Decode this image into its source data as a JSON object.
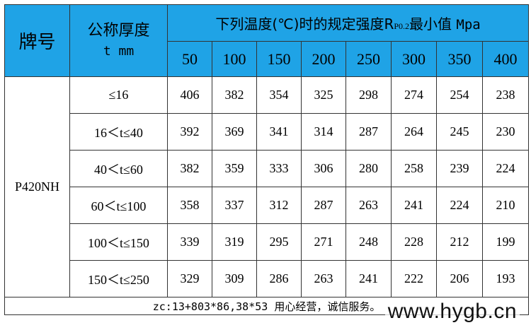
{
  "header": {
    "grade_label": "牌号",
    "thickness_label": "公称厚度",
    "thickness_unit": "t  mm",
    "temp_title_prefix": "下列温度(℃)时的规定强度R",
    "temp_title_sub": "P0.2",
    "temp_title_suffix": "最小值",
    "temp_unit": "Mpa",
    "temperatures": [
      "50",
      "100",
      "150",
      "200",
      "250",
      "300",
      "350",
      "400"
    ]
  },
  "grade": "P420NH",
  "rows": [
    {
      "range": "≤16",
      "values": [
        "406",
        "382",
        "354",
        "325",
        "298",
        "274",
        "254",
        "238"
      ]
    },
    {
      "range": "16＜t≤40",
      "values": [
        "392",
        "369",
        "341",
        "314",
        "287",
        "264",
        "245",
        "230"
      ]
    },
    {
      "range": "40＜t≤60",
      "values": [
        "382",
        "359",
        "333",
        "306",
        "280",
        "258",
        "239",
        "224"
      ]
    },
    {
      "range": "60＜t≤100",
      "values": [
        "358",
        "337",
        "312",
        "287",
        "263",
        "241",
        "224",
        "210"
      ]
    },
    {
      "range": "100＜t≤150",
      "values": [
        "339",
        "319",
        "295",
        "271",
        "248",
        "228",
        "212",
        "199"
      ]
    },
    {
      "range": "150＜t≤250",
      "values": [
        "329",
        "309",
        "286",
        "263",
        "241",
        "222",
        "206",
        "193"
      ]
    }
  ],
  "footer": "zc:13+803*86,38*53 用心经营，诚信服务。",
  "watermark": "www.hygb.cn",
  "colors": {
    "header_bg": "#1fa3e6"
  }
}
